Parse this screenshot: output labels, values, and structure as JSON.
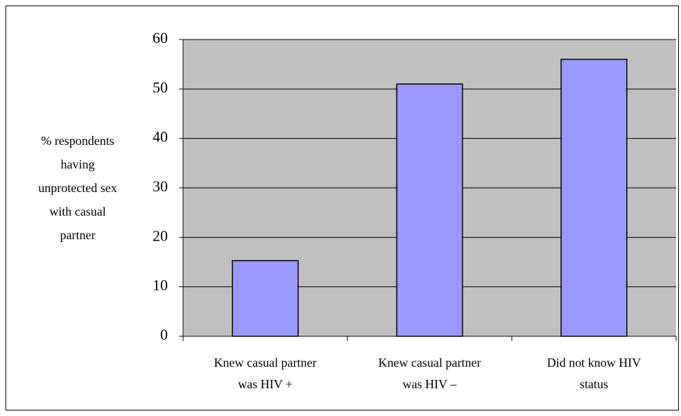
{
  "chart_data": {
    "type": "bar",
    "ylabel": [
      "% respondents",
      "having",
      "unprotected sex",
      "with casual",
      "partner"
    ],
    "categories": [
      [
        "Knew casual partner",
        "was HIV +"
      ],
      [
        "Knew casual partner",
        "was HIV –"
      ],
      [
        "Did not know HIV",
        "status"
      ]
    ],
    "values": [
      15.3,
      51,
      56
    ],
    "color": "#9999ff",
    "ylim": [
      0,
      60
    ],
    "yticks": [
      0,
      10,
      20,
      30,
      40,
      50,
      60
    ],
    "grid": true
  }
}
